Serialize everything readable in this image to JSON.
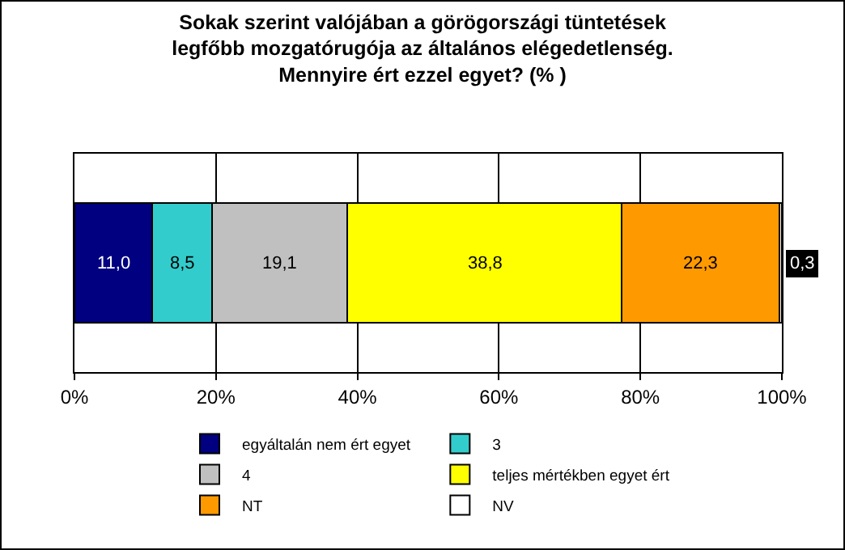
{
  "chart_data": {
    "type": "bar",
    "orientation": "horizontal",
    "stacked": true,
    "title": "Sokak szerint valójában a görögországi tüntetések\nlegfőbb mozgatórugója az általános elégedetlenség.\nMennyire ért ezzel egyet? (% )",
    "categories": [
      null
    ],
    "series": [
      {
        "name": "egyáltalán nem ért egyet",
        "color": "#000080",
        "values": [
          11.0
        ],
        "value_labels": [
          "11,0"
        ]
      },
      {
        "name": "3",
        "color": "#33cccc",
        "values": [
          8.5
        ],
        "value_labels": [
          "8,5"
        ]
      },
      {
        "name": "4",
        "color": "#c0c0c0",
        "values": [
          19.1
        ],
        "value_labels": [
          "19,1"
        ]
      },
      {
        "name": "teljes mértékben egyet ért",
        "color": "#ffff00",
        "values": [
          38.8
        ],
        "value_labels": [
          "38,8"
        ]
      },
      {
        "name": "NT",
        "color": "#ff9900",
        "values": [
          22.3
        ],
        "value_labels": [
          "22,3"
        ]
      },
      {
        "name": "NV",
        "color": "#ffffff",
        "values": [
          0.3
        ],
        "value_labels": [
          "0,3"
        ]
      }
    ],
    "xlim": [
      0,
      100
    ],
    "xticks": [
      {
        "value": 0,
        "label": "0%"
      },
      {
        "value": 20,
        "label": "20%"
      },
      {
        "value": 40,
        "label": "40%"
      },
      {
        "value": 60,
        "label": "60%"
      },
      {
        "value": 80,
        "label": "80%"
      },
      {
        "value": 100,
        "label": "100%"
      }
    ],
    "grid": "x",
    "legend": "bottom",
    "tick_labels": "x"
  }
}
